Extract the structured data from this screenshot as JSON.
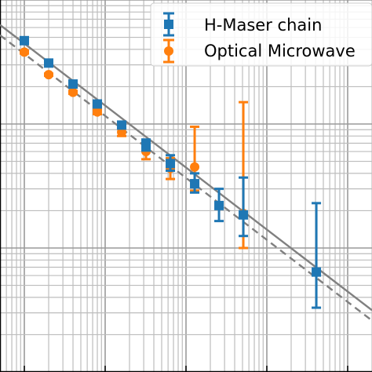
{
  "chart_data": {
    "type": "scatter",
    "title": "",
    "xlabel": "",
    "ylabel": "",
    "xscale": "log",
    "yscale": "log",
    "xlim": [
      0.5,
      20000
    ],
    "ylim": [
      1e-13,
      1e-16
    ],
    "grid": "major and minor",
    "legend_position": "top-right",
    "series": [
      {
        "name": "H-Maser chain",
        "color": "#1f77b4",
        "marker": "square",
        "points": [
          {
            "x": 1,
            "y": 4.7e-14,
            "err_lo": 4.6e-14,
            "err_hi": 4.8e-14
          },
          {
            "x": 2,
            "y": 3.1e-14,
            "err_lo": 3e-14,
            "err_hi": 3.2e-14
          },
          {
            "x": 4,
            "y": 2.1e-14,
            "err_lo": 2.05e-14,
            "err_hi": 2.15e-14
          },
          {
            "x": 8,
            "y": 1.45e-14,
            "err_lo": 1.4e-14,
            "err_hi": 1.5e-14
          },
          {
            "x": 16,
            "y": 9.8e-15,
            "err_lo": 9.3e-15,
            "err_hi": 1.03e-14
          },
          {
            "x": 32,
            "y": 6.8e-15,
            "err_lo": 6.1e-15,
            "err_hi": 7.5e-15
          },
          {
            "x": 64,
            "y": 4.8e-15,
            "err_lo": 4.2e-15,
            "err_hi": 5.6e-15
          },
          {
            "x": 128,
            "y": 3.3e-15,
            "err_lo": 2.8e-15,
            "err_hi": 4e-15
          },
          {
            "x": 256,
            "y": 2.2e-15,
            "err_lo": 1.65e-15,
            "err_hi": 3e-15
          },
          {
            "x": 512,
            "y": 1.85e-15,
            "err_lo": 1.25e-15,
            "err_hi": 3.7e-15
          },
          {
            "x": 4096,
            "y": 6.4e-16,
            "err_lo": 3.3e-16,
            "err_hi": 2.3e-15
          }
        ]
      },
      {
        "name": "Optical Microwave",
        "color": "#ff7f0e",
        "marker": "circle",
        "points": [
          {
            "x": 1,
            "y": 3.8e-14,
            "err_lo": 3.7e-14,
            "err_hi": 3.9e-14
          },
          {
            "x": 2,
            "y": 2.5e-14,
            "err_lo": 2.45e-14,
            "err_hi": 2.55e-14
          },
          {
            "x": 4,
            "y": 1.8e-14,
            "err_lo": 1.75e-14,
            "err_hi": 1.85e-14
          },
          {
            "x": 8,
            "y": 1.25e-14,
            "err_lo": 1.2e-14,
            "err_hi": 1.3e-14
          },
          {
            "x": 16,
            "y": 8.6e-15,
            "err_lo": 8e-15,
            "err_hi": 9.2e-15
          },
          {
            "x": 32,
            "y": 6e-15,
            "err_lo": 5.2e-15,
            "err_hi": 6.9e-15
          },
          {
            "x": 64,
            "y": 4.4e-15,
            "err_lo": 3.6e-15,
            "err_hi": 5.3e-15
          },
          {
            "x": 128,
            "y": 4.5e-15,
            "err_lo": 2.9e-15,
            "err_hi": 9.5e-15
          },
          {
            "x": 512,
            "y": 1.9e-15,
            "err_lo": 1e-15,
            "err_hi": 1.5e-14
          }
        ]
      }
    ],
    "reference_lines": [
      {
        "style": "solid",
        "color": "#808080",
        "from": {
          "x": 0.5,
          "y": 6.3e-14
        },
        "to": {
          "x": 20000,
          "y": 3.15e-16
        }
      },
      {
        "style": "dashed",
        "color": "#808080",
        "from": {
          "x": 0.5,
          "y": 5.2e-14
        },
        "to": {
          "x": 20000,
          "y": 2.6e-16
        }
      }
    ]
  }
}
